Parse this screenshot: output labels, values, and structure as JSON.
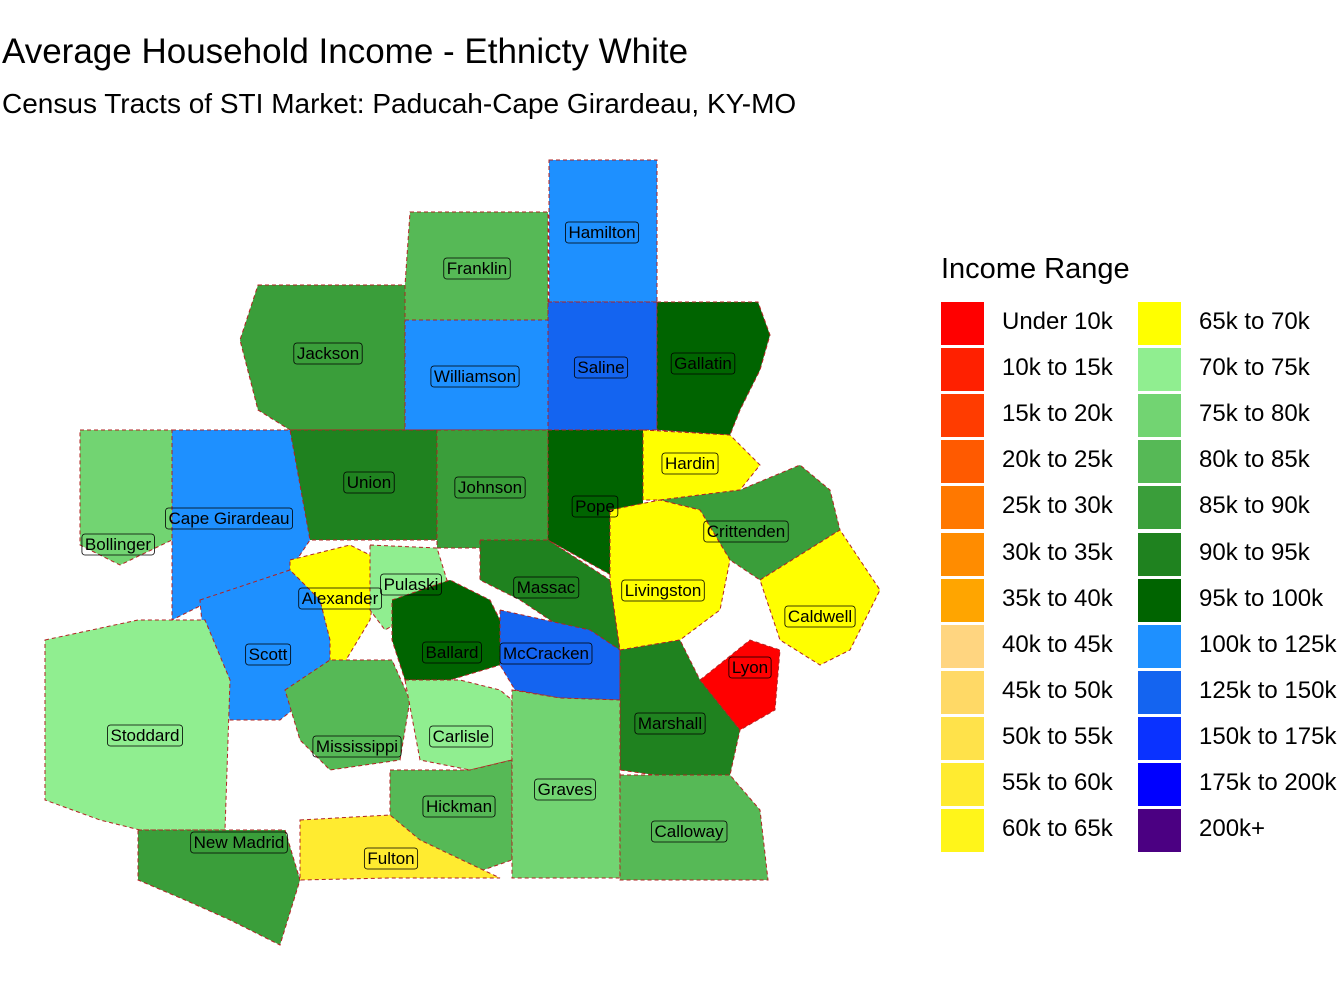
{
  "title": "Average Household Income - Ethnicty White",
  "subtitle": "Census Tracts of STI Market: Paducah-Cape Girardeau, KY-MO",
  "legend": {
    "title": "Income Range",
    "items": [
      {
        "label": "Under 10k",
        "color": "#FF0000"
      },
      {
        "label": "10k to 15k",
        "color": "#FF2000"
      },
      {
        "label": "15k to 20k",
        "color": "#FF3C00"
      },
      {
        "label": "20k to 25k",
        "color": "#FF5A00"
      },
      {
        "label": "25k to 30k",
        "color": "#FF7800"
      },
      {
        "label": "30k to 35k",
        "color": "#FF8C00"
      },
      {
        "label": "35k to 40k",
        "color": "#FFA500"
      },
      {
        "label": "40k to 45k",
        "color": "#FFD580"
      },
      {
        "label": "45k to 50k",
        "color": "#FFD966"
      },
      {
        "label": "50k to 55k",
        "color": "#FFE24A"
      },
      {
        "label": "55k to 60k",
        "color": "#FFEB30"
      },
      {
        "label": "60k to 65k",
        "color": "#FFF51A"
      },
      {
        "label": "65k to 70k",
        "color": "#FFFF00"
      },
      {
        "label": "70k to 75k",
        "color": "#90EE90"
      },
      {
        "label": "75k to 80k",
        "color": "#72D472"
      },
      {
        "label": "80k to 85k",
        "color": "#56B956"
      },
      {
        "label": "85k to 90k",
        "color": "#3A9E3A"
      },
      {
        "label": "90k to 95k",
        "color": "#1F821F"
      },
      {
        "label": "95k to 100k",
        "color": "#006400"
      },
      {
        "label": "100k to 125k",
        "color": "#1E90FF"
      },
      {
        "label": "125k to 150k",
        "color": "#1464F0"
      },
      {
        "label": "150k to 175k",
        "color": "#0A32FF"
      },
      {
        "label": "175k to 200k",
        "color": "#0000FF"
      },
      {
        "label": "200k+",
        "color": "#4B0082"
      }
    ]
  },
  "counties": [
    {
      "name": "Hamilton",
      "color": "#1E90FF"
    },
    {
      "name": "Franklin",
      "color": "#56B956"
    },
    {
      "name": "Jackson",
      "color": "#3A9E3A"
    },
    {
      "name": "Williamson",
      "color": "#1E90FF"
    },
    {
      "name": "Saline",
      "color": "#1464F0"
    },
    {
      "name": "Gallatin",
      "color": "#006400"
    },
    {
      "name": "Union",
      "color": "#1F821F"
    },
    {
      "name": "Johnson",
      "color": "#3A9E3A"
    },
    {
      "name": "Pope",
      "color": "#006400"
    },
    {
      "name": "Hardin",
      "color": "#FFFF00"
    },
    {
      "name": "Cape Girardeau",
      "color": "#1E90FF"
    },
    {
      "name": "Bollinger",
      "color": "#72D472"
    },
    {
      "name": "Crittenden",
      "color": "#3A9E3A"
    },
    {
      "name": "Alexander",
      "color": "#FFFF00"
    },
    {
      "name": "Pulaski",
      "color": "#90EE90"
    },
    {
      "name": "Massac",
      "color": "#1F821F"
    },
    {
      "name": "Livingston",
      "color": "#FFFF00"
    },
    {
      "name": "Caldwell",
      "color": "#FFFF00"
    },
    {
      "name": "Scott",
      "color": "#1E90FF"
    },
    {
      "name": "Ballard",
      "color": "#006400"
    },
    {
      "name": "McCracken",
      "color": "#1464F0"
    },
    {
      "name": "Lyon",
      "color": "#FF0000"
    },
    {
      "name": "Stoddard",
      "color": "#90EE90"
    },
    {
      "name": "Mississippi",
      "color": "#56B956"
    },
    {
      "name": "Carlisle",
      "color": "#90EE90"
    },
    {
      "name": "Marshall",
      "color": "#1F821F"
    },
    {
      "name": "Hickman",
      "color": "#56B956"
    },
    {
      "name": "Graves",
      "color": "#72D472"
    },
    {
      "name": "Calloway",
      "color": "#56B956"
    },
    {
      "name": "New Madrid",
      "color": "#3A9E3A"
    },
    {
      "name": "Fulton",
      "color": "#FFEB30"
    }
  ]
}
